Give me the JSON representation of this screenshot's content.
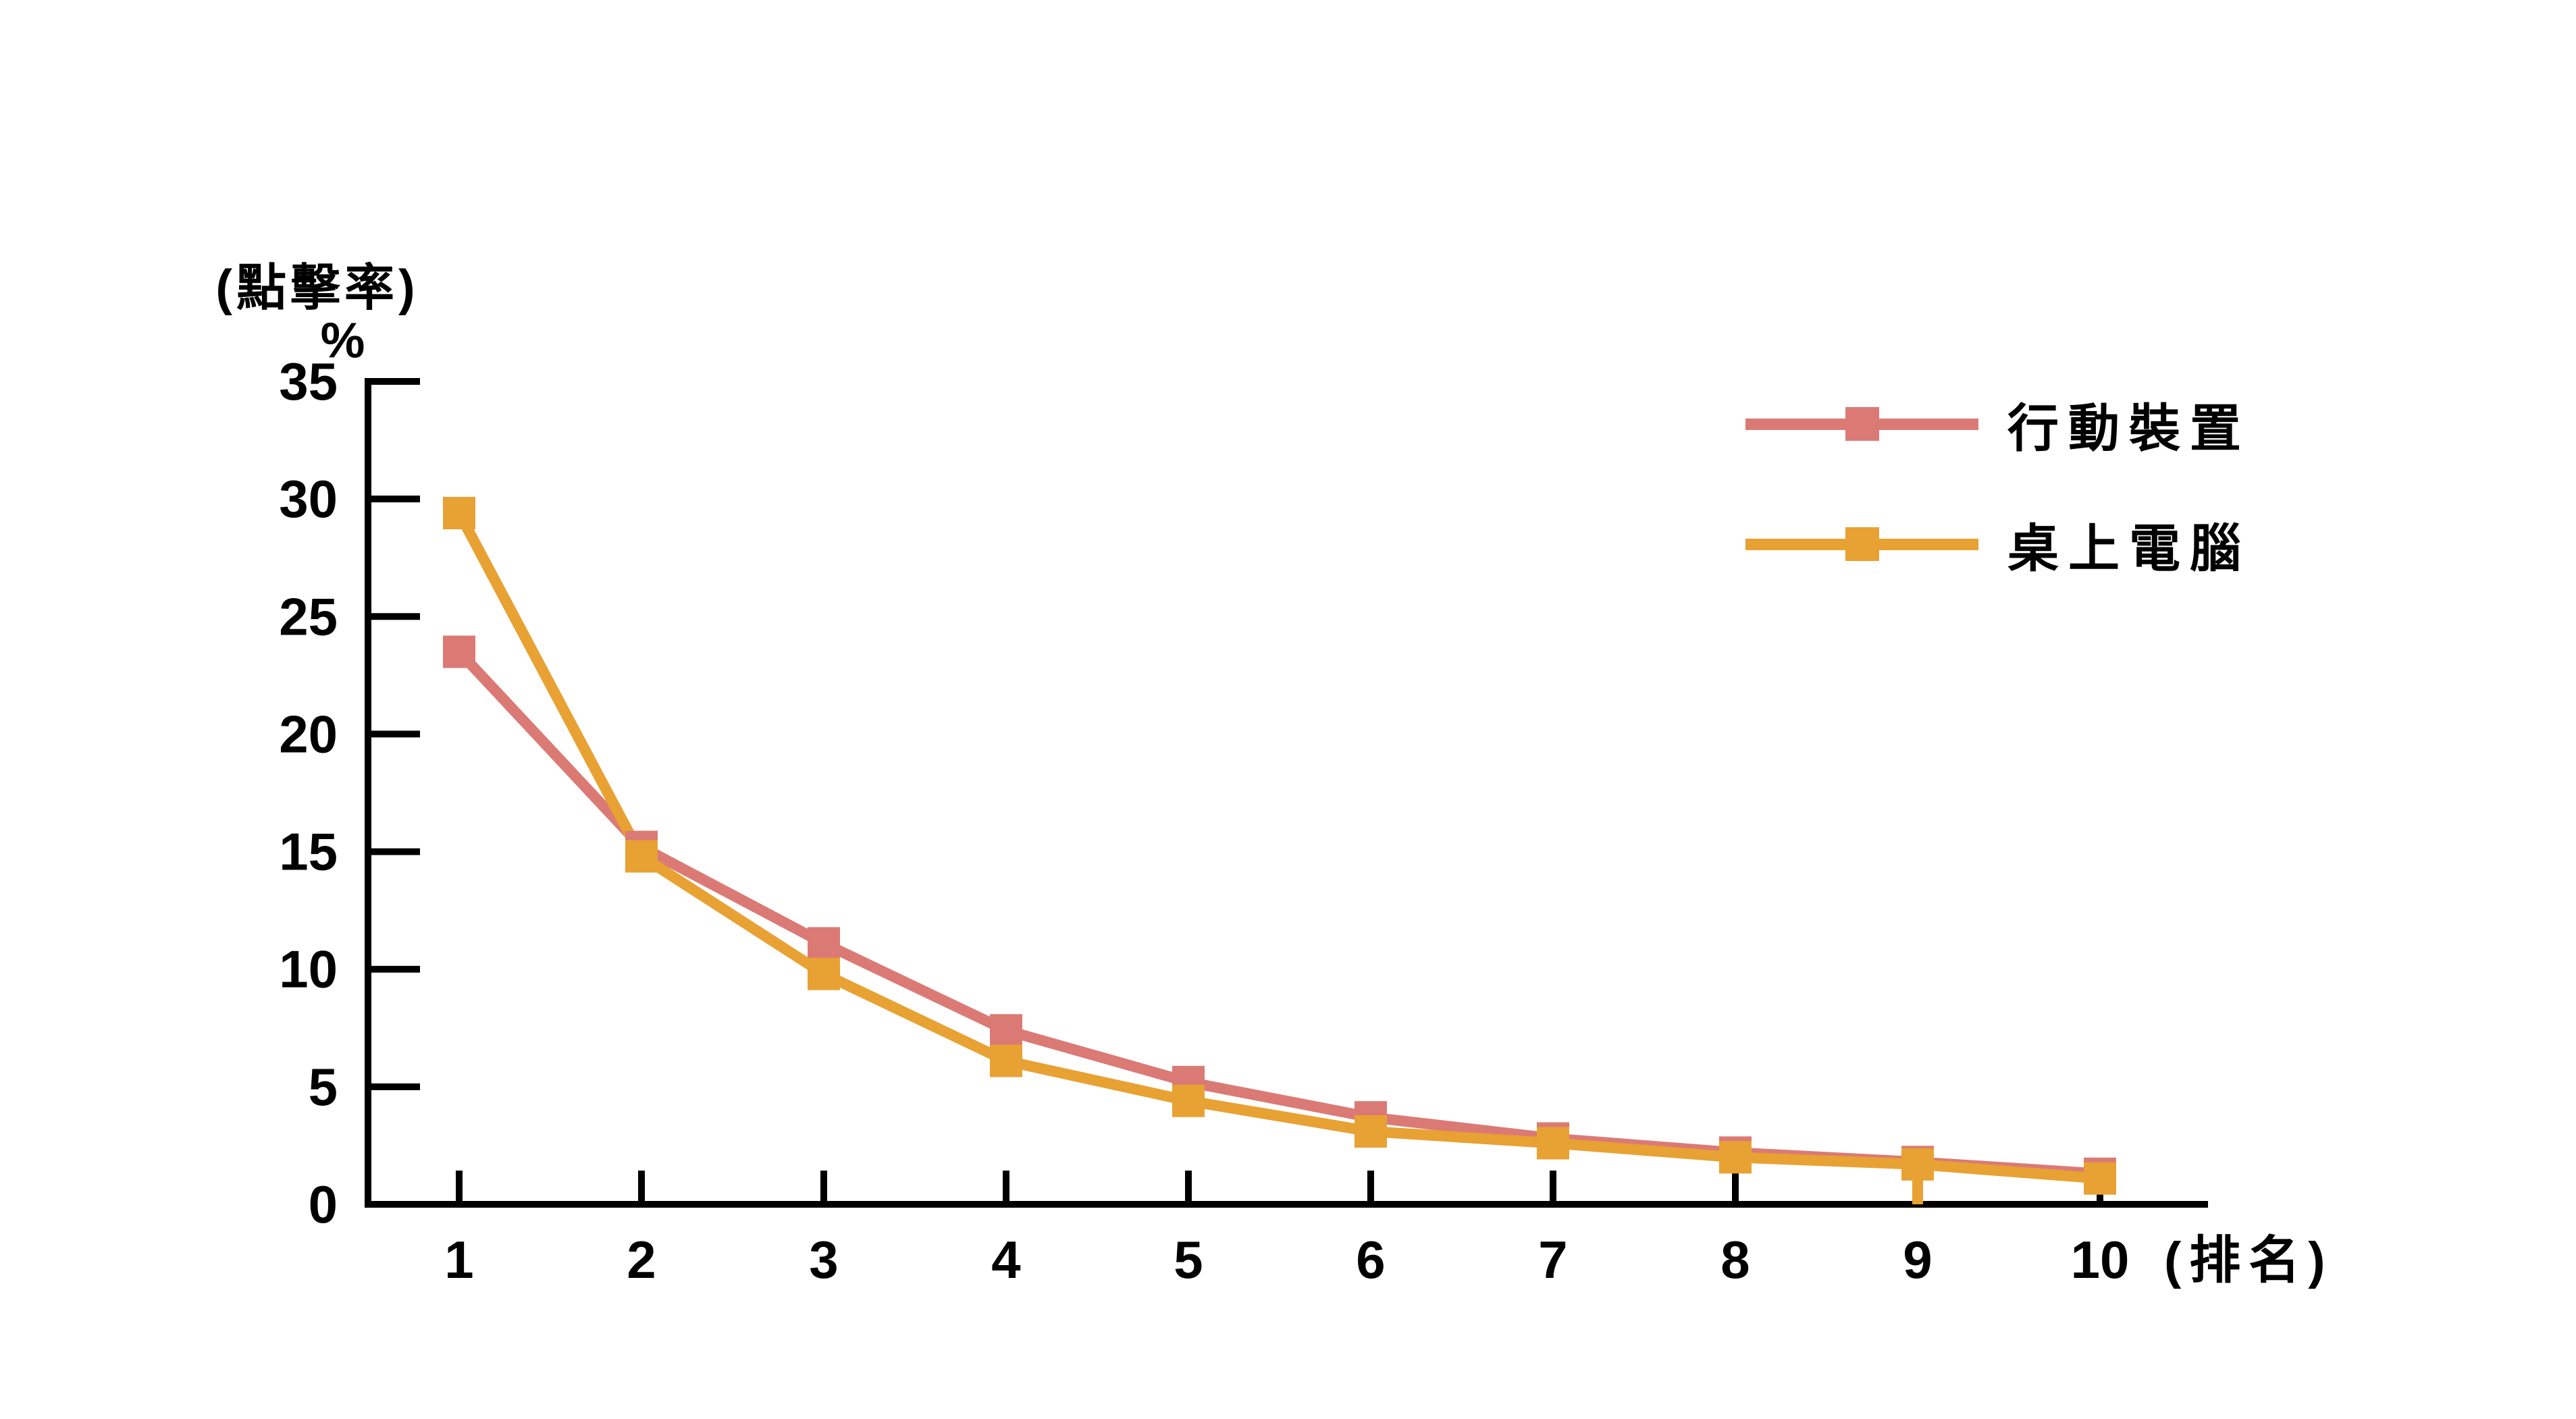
{
  "chart_data": {
    "type": "line",
    "title": "(點擊率)",
    "y_unit_label": "%",
    "xlabel": "(排名)",
    "ylabel": "(點擊率) %",
    "categories": [
      "1",
      "2",
      "3",
      "4",
      "5",
      "6",
      "7",
      "8",
      "9",
      "10"
    ],
    "yticks": [
      "35",
      "30",
      "25",
      "20",
      "15",
      "10",
      "5",
      "0"
    ],
    "ylim": [
      0,
      35
    ],
    "grid": false,
    "marker": "square",
    "legend_position": "top-right",
    "series": [
      {
        "name": "行動裝置",
        "color": "#DB7A75",
        "values": [
          23.5,
          15.2,
          11.1,
          7.4,
          5.2,
          3.7,
          2.8,
          2.2,
          1.8,
          1.3
        ]
      },
      {
        "name": "桌上電腦",
        "color": "#E8A133",
        "values": [
          29.4,
          14.8,
          9.8,
          6.1,
          4.4,
          3.1,
          2.6,
          2.0,
          1.7,
          1.1
        ]
      }
    ],
    "artifact": {
      "series_index": 1,
      "rank": 9,
      "note": "orange marker tail extends down to x-axis at rank 9"
    }
  },
  "colors": {
    "axis": "#000000",
    "background": "#ffffff",
    "text": "#000000",
    "mobile_line": "#DB7A75",
    "desktop_line": "#E8A133"
  }
}
